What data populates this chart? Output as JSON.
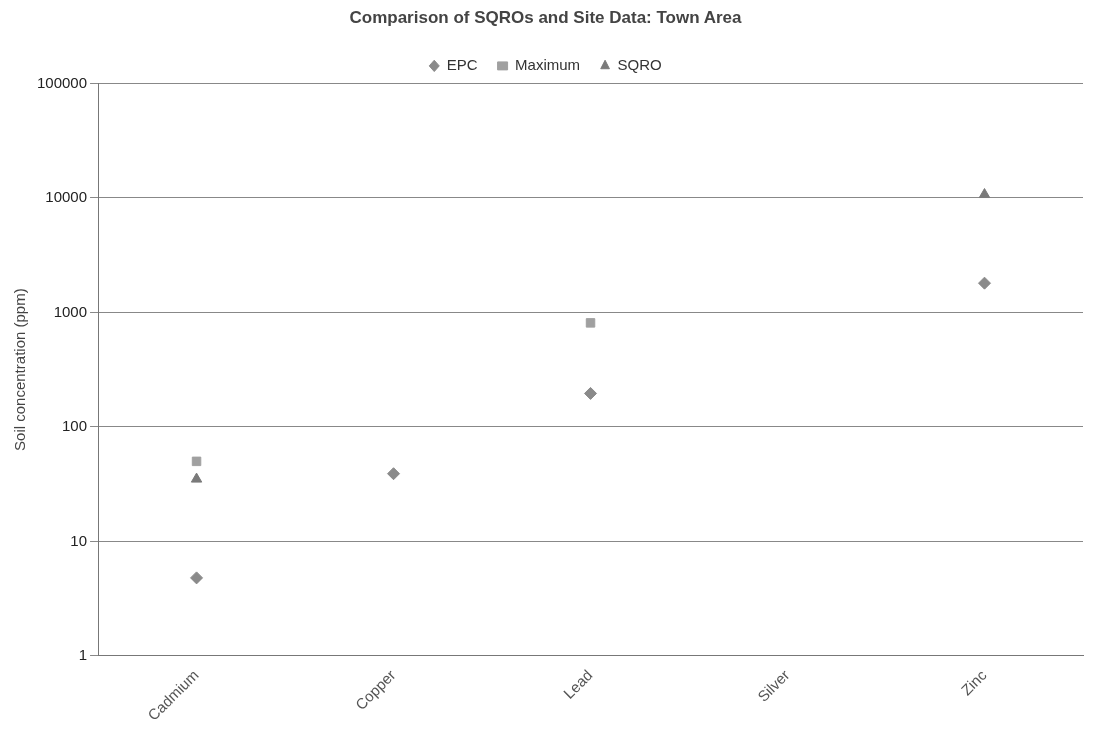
{
  "chart_data": {
    "type": "scatter",
    "title": "Comparison of SQROs and Site Data: Town Area",
    "ylabel": "Soil concentration (ppm)",
    "categories": [
      "Cadmium",
      "Copper",
      "Lead",
      "Silver",
      "Zinc"
    ],
    "series": [
      {
        "name": "EPC",
        "color": "#8a8a8a",
        "marker": "diamond",
        "values": [
          4.8,
          39,
          196,
          null,
          1800
        ]
      },
      {
        "name": "Maximum",
        "color": "#a0a0a0",
        "marker": "square",
        "values": [
          50,
          null,
          810,
          null,
          null
        ]
      },
      {
        "name": "SQRO",
        "color": "#7a7a7a",
        "marker": "triangle",
        "values": [
          35,
          null,
          null,
          null,
          10700
        ]
      }
    ],
    "log": "y",
    "ylim": [
      1,
      100000
    ],
    "yticks": [
      1,
      10,
      100,
      1000,
      10000,
      100000
    ],
    "grid": "y",
    "legend": "top"
  }
}
